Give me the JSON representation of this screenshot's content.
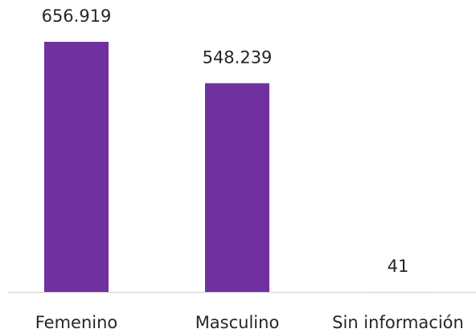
{
  "chart_data": {
    "type": "bar",
    "categories": [
      "Femenino",
      "Masculino",
      "Sin información"
    ],
    "values": [
      656919,
      548239,
      41
    ],
    "value_labels": [
      "656.919",
      "548.239",
      "41"
    ],
    "color": "#7030a0"
  }
}
